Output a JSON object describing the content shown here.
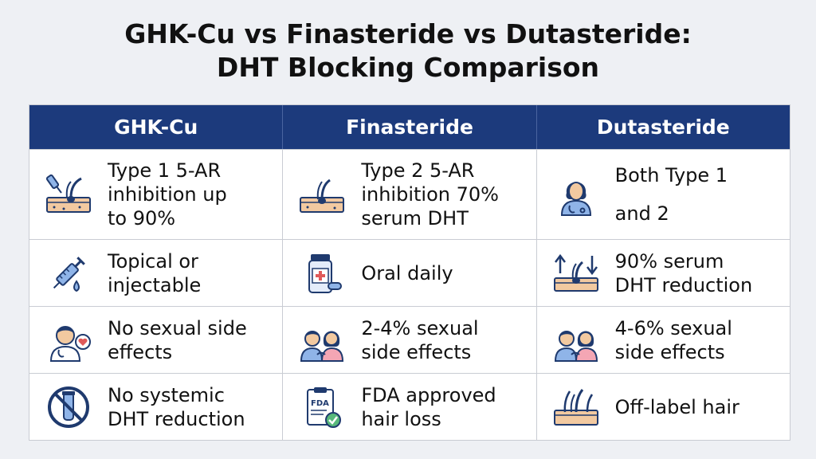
{
  "title": {
    "line1": "GHK-Cu vs Finasteride vs Dutasteride:",
    "line2": "DHT Blocking Comparison"
  },
  "columns": [
    "GHK-Cu",
    "Finasteride",
    "Dutasteride"
  ],
  "rows": [
    {
      "cells": [
        {
          "icon": "skin-hair-dropper-icon",
          "text": "Type 1 5-AR\ninhibition up\nto 90%"
        },
        {
          "icon": "skin-hair-follicle-icon",
          "text": "Type 2 5-AR\ninhibition 70%\nserum DHT"
        },
        {
          "icon": "doctor-icon",
          "text": "Both Type 1\nand 2"
        }
      ]
    },
    {
      "cells": [
        {
          "icon": "syringe-icon",
          "text": "Topical or\ninjectable"
        },
        {
          "icon": "pill-bottle-icon",
          "text": "Oral daily"
        },
        {
          "icon": "hair-arrows-icon",
          "text": "90% serum\nDHT reduction"
        }
      ]
    },
    {
      "cells": [
        {
          "icon": "doctor-heart-icon",
          "text": "No sexual side\neffects"
        },
        {
          "icon": "couple-icon",
          "text": "2-4% sexual\nside effects"
        },
        {
          "icon": "couple-icon",
          "text": "4-6% sexual\nside effects"
        }
      ]
    },
    {
      "cells": [
        {
          "icon": "no-vial-icon",
          "text": "No systemic\nDHT reduction"
        },
        {
          "icon": "fda-clipboard-icon",
          "text": "FDA approved\nhair loss",
          "badge": "FDA"
        },
        {
          "icon": "hair-follicles-icon",
          "text": "Off-label hair"
        }
      ]
    }
  ],
  "colors": {
    "header_bg": "#1c3a7c",
    "icon_navy": "#1f3a6e",
    "icon_skin": "#f2c9a0",
    "icon_blue": "#8fb4e8"
  }
}
